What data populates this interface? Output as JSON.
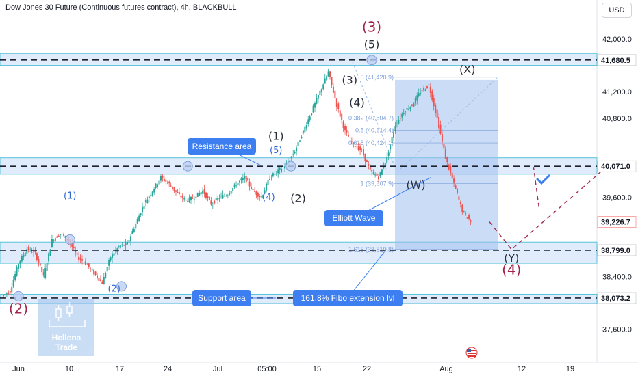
{
  "header": {
    "title": "Dow Jones 30 Future (Continuous futures contract), 4h, BLACKBULL",
    "currency": "USD"
  },
  "colors": {
    "bullish": "#26a69a",
    "bearish": "#ef5350",
    "zone_fill": "#d6e4fb",
    "zone_border": "#56c2d6",
    "callout": "#3d7ef0",
    "wave_red": "#a3244b",
    "wave_dark": "#2a2e39",
    "wave_blue": "#2f6ad4",
    "projection": "#a52a4a"
  },
  "chart_data": {
    "type": "candlestick",
    "symbol": "Dow Jones 30 Future (Continuous futures contract)",
    "timeframe": "4h",
    "broker": "BLACKBULL",
    "y_axis": {
      "ticks": [
        "42,000.0",
        "41,200.0",
        "40,800.0",
        "39,600.0",
        "38,400.0",
        "37,600.0"
      ],
      "range": [
        37600,
        42000
      ]
    },
    "x_axis": {
      "ticks": [
        "Jun",
        "10",
        "17",
        "24",
        "Jul",
        "05:00",
        "15",
        "22",
        "Aug",
        "12",
        "19"
      ]
    },
    "price_labels": [
      {
        "value": 41680.5,
        "text": "41,680.5",
        "style": "dark"
      },
      {
        "value": 40071.0,
        "text": "40,071.0",
        "style": "dark"
      },
      {
        "value": 39226.7,
        "text": "39,226.7",
        "style": "red"
      },
      {
        "value": 38799.0,
        "text": "38,799.0",
        "style": "dark"
      },
      {
        "value": 38073.2,
        "text": "38,073.2",
        "style": "dark"
      }
    ],
    "zones": [
      {
        "name": "top resistance",
        "from": 41600,
        "to": 41780
      },
      {
        "name": "Resistance area",
        "from": 39950,
        "to": 40200
      },
      {
        "name": "fib extension zone",
        "from": 38600,
        "to": 38920
      },
      {
        "name": "Support area",
        "from": 37990,
        "to": 38130
      }
    ],
    "fibonacci": [
      {
        "ratio": "0",
        "value": 41420.9,
        "text": "0 (41,420.9)"
      },
      {
        "ratio": "0.382",
        "value": 40804.7,
        "text": "0.382 (40,804.7)"
      },
      {
        "ratio": "0.5",
        "value": 40614.4,
        "text": "0.5 (40,614.4)"
      },
      {
        "ratio": "0.618",
        "value": 40424.1,
        "text": "0.618 (40,424.1)"
      },
      {
        "ratio": "1",
        "value": 39807.9,
        "text": "1 (39,807.9)"
      },
      {
        "ratio": "1.618",
        "value": 38810.8,
        "text": "1.618 (38,810.8)"
      }
    ],
    "wave_labels": [
      {
        "text": "(2)",
        "color": "red",
        "size": "large",
        "date": "Jun 1",
        "price": 37840
      },
      {
        "text": "(1)",
        "color": "blue",
        "size": "small",
        "date": "Jun 8",
        "price": 39580
      },
      {
        "text": "(2)",
        "color": "blue",
        "size": "small",
        "date": "Jun 14",
        "price": 38170
      },
      {
        "text": "(3)",
        "color": "blue",
        "size": "small",
        "date": "Jun 25",
        "price": 40270
      },
      {
        "text": "(4)",
        "color": "blue",
        "size": "small",
        "date": "Jul 5",
        "price": 39560
      },
      {
        "text": "(5)",
        "color": "blue",
        "size": "small",
        "date": "Jul 6",
        "price": 40270
      },
      {
        "text": "(1)",
        "color": "dark",
        "size": "medium",
        "date": "Jul 6",
        "price": 40470
      },
      {
        "text": "(2)",
        "color": "dark",
        "size": "medium",
        "date": "Jul 9",
        "price": 39530
      },
      {
        "text": "(3)",
        "color": "dark",
        "size": "medium",
        "date": "Jul 16",
        "price": 41320
      },
      {
        "text": "(4)",
        "color": "dark",
        "size": "medium",
        "date": "Jul 17",
        "price": 40980
      },
      {
        "text": "(5)",
        "color": "dark",
        "size": "medium",
        "date": "Jul 19",
        "price": 41860
      },
      {
        "text": "(3)",
        "color": "red",
        "size": "large",
        "date": "Jul 19",
        "price": 42110
      },
      {
        "text": "(W)",
        "color": "dark",
        "size": "medium",
        "date": "Jul 25",
        "price": 39730
      },
      {
        "text": "(X)",
        "color": "dark",
        "size": "medium",
        "date": "Aug 1",
        "price": 41480
      },
      {
        "text": "(Y)",
        "color": "dark",
        "size": "medium",
        "date": "Aug 7",
        "price": 38620
      },
      {
        "text": "(4)",
        "color": "red",
        "size": "large",
        "date": "Aug 7",
        "price": 38430
      }
    ],
    "annotations": [
      {
        "text": "Resistance area",
        "type": "callout"
      },
      {
        "text": "Elliott Wave",
        "type": "callout"
      },
      {
        "text": "Support area",
        "type": "callout"
      },
      {
        "text": "161.8% Fibo extension lvl",
        "type": "callout"
      }
    ],
    "projection": {
      "points": [
        {
          "date": "Aug 4",
          "price": 39226.7
        },
        {
          "date": "Aug 7",
          "price": 38810
        },
        {
          "date": "Aug 20",
          "price": 40071
        }
      ]
    },
    "candles_close_path": [
      38100,
      38180,
      38600,
      38820,
      38750,
      38400,
      38950,
      39050,
      38950,
      38700,
      38600,
      38450,
      38300,
      38700,
      38850,
      38900,
      39200,
      39500,
      39700,
      39900,
      39800,
      39650,
      39550,
      39600,
      39700,
      39500,
      39600,
      39650,
      39800,
      39900,
      39700,
      39600,
      39900,
      40000,
      40100,
      40300,
      40600,
      40900,
      41200,
      41500,
      41000,
      40600,
      40400,
      40300,
      40000,
      39900,
      40200,
      40700,
      40900,
      41000,
      41200,
      41300,
      40800,
      40200,
      39800,
      39400,
      39230
    ]
  },
  "watermark": {
    "line1": "Hellena",
    "line2": "Trade"
  }
}
